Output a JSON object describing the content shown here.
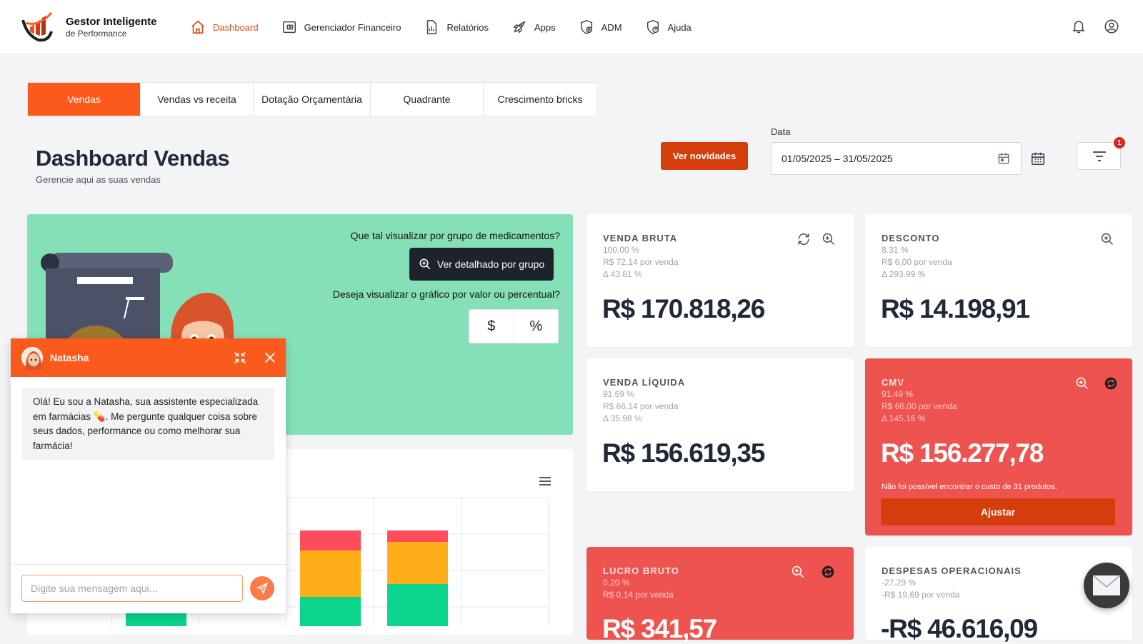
{
  "brand": {
    "name": "Gestor Inteligente",
    "sub": "de Performance"
  },
  "nav": [
    {
      "label": "Dashboard",
      "icon": "home-icon",
      "active": true
    },
    {
      "label": "Gerenciador Financeiro",
      "icon": "wallet-icon"
    },
    {
      "label": "Relatórios",
      "icon": "report-icon"
    },
    {
      "label": "Apps",
      "icon": "rocket-icon"
    },
    {
      "label": "ADM",
      "icon": "shield-gear-icon"
    },
    {
      "label": "Ajuda",
      "icon": "shield-help-icon"
    }
  ],
  "tabs": [
    "Vendas",
    "Vendas vs receita",
    "Dotação Orçamentária",
    "Quadrante",
    "Crescimento bricks"
  ],
  "page": {
    "title": "Dashboard Vendas",
    "subtitle": "Gerencie aqui as suas vendas"
  },
  "actions": {
    "news_label": "Ver novidades",
    "date_label": "Data",
    "date_value": "01/05/2025 – 31/05/2025",
    "filter_badge": "1"
  },
  "banner": {
    "question1": "Que tal visualizar por grupo de medicamentos?",
    "group_button": "Ver detalhado por grupo",
    "question2": "Deseja visualizar o gráfico por valor ou percentual?",
    "toggle_value": "$",
    "toggle_percent": "%"
  },
  "kpis": {
    "venda_bruta": {
      "title": "VENDA BRUTA",
      "pct": "100.00 %",
      "per_sale": "R$ 72,14 por venda",
      "delta": "Δ 43.81 %",
      "value": "R$ 170.818,26"
    },
    "desconto": {
      "title": "DESCONTO",
      "pct": "8.31 %",
      "per_sale": "R$ 6,00 por venda",
      "delta": "Δ 293.99 %",
      "value": "R$ 14.198,91"
    },
    "venda_liquida": {
      "title": "VENDA LÍQUIDA",
      "pct": "91.69 %",
      "per_sale": "R$ 66,14 por venda",
      "delta": "Δ 35.98 %",
      "value": "R$ 156.619,35"
    },
    "cmv": {
      "title": "CMV",
      "pct": "91.49 %",
      "per_sale": "R$ 66,00 por venda",
      "delta": "Δ 145.16 %",
      "value": "R$ 156.277,78",
      "warning": "Não foi possível encontrar o custo de 31 produtos.",
      "button": "Ajustar"
    },
    "lucro_bruto": {
      "title": "LUCRO BRUTO",
      "pct": "0.20 %",
      "per_sale": "R$ 0,14 por venda",
      "value": "R$ 341,57"
    },
    "despesas": {
      "title": "DESPESAS OPERACIONAIS",
      "pct": "-27.29 %",
      "per_sale": "-R$ 19,69 por venda",
      "value": "-R$ 46.616,09"
    }
  },
  "chat": {
    "name": "Natasha",
    "message": "Olá! Eu sou a Natasha, sua assistente especializada em farmácias 💊. Me pergunte qualquer coisa sobre seus dados, performance ou como melhorar sua farmácia!",
    "placeholder": "Digite sua mensagem aqui..."
  },
  "colors": {
    "accent": "#fb5a1c",
    "dark_accent": "#d43d0c",
    "banner": "#86e0b7",
    "alert": "#ef5350"
  }
}
